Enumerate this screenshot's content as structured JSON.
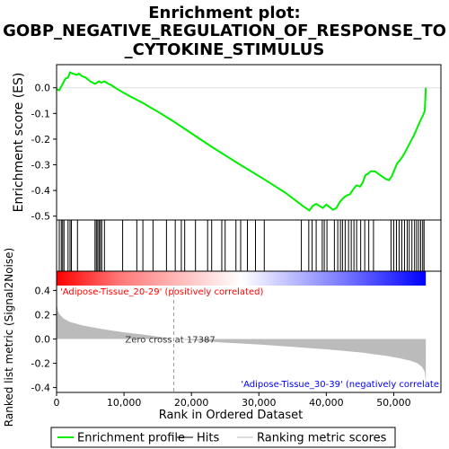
{
  "chart_data": {
    "type": "line",
    "title_lines": [
      "Enrichment plot:",
      "GOBP_NEGATIVE_REGULATION_OF_RESPONSE_TO",
      "_CYTOKINE_STIMULUS"
    ],
    "es_panel": {
      "ylabel": "Enrichment score (ES)",
      "yticks": [
        0.0,
        -0.1,
        -0.2,
        -0.3,
        -0.4,
        -0.5
      ],
      "ytick_labels": [
        "0.0",
        "-0.1",
        "-0.2",
        "-0.3",
        "-0.4",
        "-0.5"
      ],
      "ylim": [
        -0.515,
        0.09
      ],
      "xlim": [
        0,
        57000
      ],
      "curve_color": "#00ee00",
      "points": [
        [
          0,
          -0.005
        ],
        [
          400,
          -0.01
        ],
        [
          700,
          0.005
        ],
        [
          1000,
          0.02
        ],
        [
          1300,
          0.035
        ],
        [
          1700,
          0.04
        ],
        [
          2000,
          0.06
        ],
        [
          2400,
          0.055
        ],
        [
          3000,
          0.05
        ],
        [
          3300,
          0.055
        ],
        [
          3800,
          0.045
        ],
        [
          4300,
          0.04
        ],
        [
          5000,
          0.025
        ],
        [
          5700,
          0.015
        ],
        [
          6000,
          0.02
        ],
        [
          6300,
          0.025
        ],
        [
          6600,
          0.02
        ],
        [
          7100,
          0.025
        ],
        [
          7700,
          0.015
        ],
        [
          8000,
          0.012
        ],
        [
          9000,
          -0.005
        ],
        [
          10000,
          -0.02
        ],
        [
          11000,
          -0.035
        ],
        [
          12000,
          -0.048
        ],
        [
          13000,
          -0.062
        ],
        [
          14000,
          -0.078
        ],
        [
          15000,
          -0.093
        ],
        [
          17000,
          -0.125
        ],
        [
          19000,
          -0.16
        ],
        [
          21000,
          -0.195
        ],
        [
          23000,
          -0.23
        ],
        [
          25000,
          -0.263
        ],
        [
          27000,
          -0.296
        ],
        [
          29000,
          -0.328
        ],
        [
          31000,
          -0.36
        ],
        [
          32500,
          -0.385
        ],
        [
          34000,
          -0.41
        ],
        [
          35500,
          -0.44
        ],
        [
          36500,
          -0.46
        ],
        [
          37500,
          -0.478
        ],
        [
          38000,
          -0.46
        ],
        [
          38500,
          -0.452
        ],
        [
          39000,
          -0.46
        ],
        [
          39500,
          -0.468
        ],
        [
          40000,
          -0.455
        ],
        [
          40500,
          -0.465
        ],
        [
          41000,
          -0.475
        ],
        [
          41500,
          -0.468
        ],
        [
          42000,
          -0.445
        ],
        [
          42500,
          -0.43
        ],
        [
          43000,
          -0.42
        ],
        [
          43500,
          -0.415
        ],
        [
          44000,
          -0.395
        ],
        [
          44500,
          -0.38
        ],
        [
          45000,
          -0.385
        ],
        [
          45400,
          -0.37
        ],
        [
          45800,
          -0.34
        ],
        [
          46200,
          -0.335
        ],
        [
          46600,
          -0.325
        ],
        [
          47200,
          -0.325
        ],
        [
          48000,
          -0.34
        ],
        [
          48800,
          -0.355
        ],
        [
          49300,
          -0.36
        ],
        [
          49700,
          -0.345
        ],
        [
          50100,
          -0.32
        ],
        [
          50500,
          -0.295
        ],
        [
          51000,
          -0.28
        ],
        [
          51500,
          -0.26
        ],
        [
          52000,
          -0.235
        ],
        [
          52500,
          -0.21
        ],
        [
          53000,
          -0.185
        ],
        [
          53500,
          -0.155
        ],
        [
          54000,
          -0.125
        ],
        [
          54300,
          -0.11
        ],
        [
          54600,
          -0.09
        ],
        [
          54700,
          -0.04
        ],
        [
          54760,
          0.0
        ]
      ]
    },
    "hits": [
      400,
      700,
      900,
      1100,
      1700,
      2000,
      2200,
      3100,
      5700,
      5900,
      6100,
      6300,
      6500,
      6700,
      7100,
      9800,
      11900,
      12800,
      14300,
      16300,
      17600,
      18500,
      19000,
      20600,
      22400,
      23000,
      24500,
      25000,
      26600,
      27300,
      28300,
      29500,
      30800,
      36300,
      37400,
      37900,
      38500,
      39400,
      39700,
      40100,
      41200,
      41700,
      42100,
      42400,
      42800,
      43300,
      43700,
      44100,
      44500,
      45100,
      45700,
      46300,
      47000,
      49600,
      50000,
      50400,
      50800,
      51200,
      51600,
      52000,
      52300,
      52700,
      53100,
      53400,
      53700,
      54000,
      54300,
      54500
    ],
    "rank_band": {
      "colors": [
        "#ff0000",
        "#ff7777",
        "#ffffff",
        "#7777ff",
        "#0000ff"
      ],
      "positive_label": "'Adipose-Tissue_20-29' (positively correlated)",
      "negative_label": "'Adipose-Tissue_30-39' (negatively correlate",
      "positive_label_color": "#ff0000",
      "negative_label_color": "#0000ff"
    },
    "metric_panel": {
      "ylabel": "Ranked list metric (Signal2Noise)",
      "yticks": [
        0.4,
        0.2,
        0.0,
        -0.2,
        -0.4
      ],
      "ytick_labels": [
        "0.4",
        "0.2",
        "0.0",
        "-0.2",
        "-0.4"
      ],
      "ylim": [
        -0.44,
        0.44
      ],
      "fill_color": "#bbbbbb",
      "zero_cross_label": "Zero cross at 17387",
      "zero_cross": 17387,
      "points": [
        [
          0,
          0.29
        ],
        [
          200,
          0.23
        ],
        [
          500,
          0.2
        ],
        [
          1000,
          0.17
        ],
        [
          2000,
          0.14
        ],
        [
          4000,
          0.11
        ],
        [
          7000,
          0.08
        ],
        [
          10000,
          0.055
        ],
        [
          13000,
          0.035
        ],
        [
          15000,
          0.02
        ],
        [
          17387,
          0.0
        ],
        [
          20000,
          -0.01
        ],
        [
          25000,
          -0.03
        ],
        [
          30000,
          -0.045
        ],
        [
          35000,
          -0.065
        ],
        [
          40000,
          -0.085
        ],
        [
          45000,
          -0.11
        ],
        [
          49000,
          -0.14
        ],
        [
          51000,
          -0.16
        ],
        [
          52500,
          -0.18
        ],
        [
          53500,
          -0.2
        ],
        [
          54200,
          -0.23
        ],
        [
          54600,
          -0.27
        ],
        [
          54760,
          -0.36
        ]
      ]
    },
    "xaxis": {
      "label": "Rank in Ordered Dataset",
      "ticks": [
        0,
        10000,
        20000,
        30000,
        40000,
        50000
      ],
      "tick_labels": [
        "0",
        "10,000",
        "20,000",
        "30,000",
        "40,000",
        "50,000"
      ]
    },
    "legend": {
      "position": "bottom",
      "items": [
        {
          "label": "Enrichment profile",
          "color": "#00ee00"
        },
        {
          "label": "Hits",
          "color": "#000000"
        },
        {
          "label": "Ranking metric scores",
          "color": "#bbbbbb"
        }
      ]
    }
  }
}
